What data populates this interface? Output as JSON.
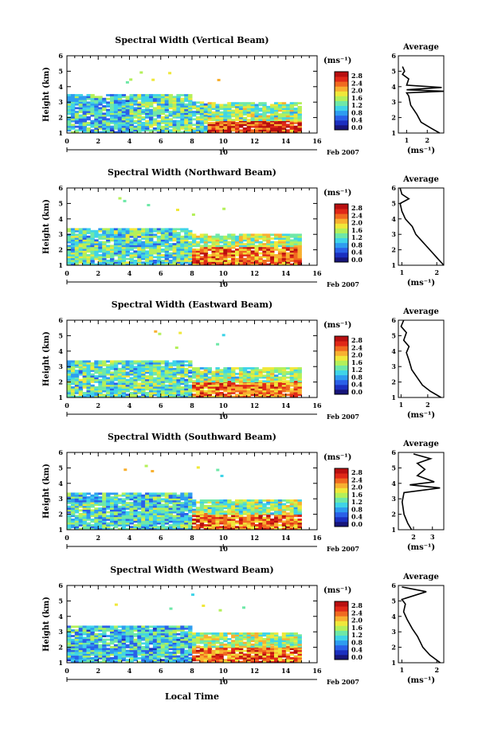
{
  "figure": {
    "x_ticks": [
      "0",
      "2",
      "4",
      "6",
      "8",
      "10",
      "12",
      "14",
      "16"
    ],
    "height_ticks": [
      "1",
      "2",
      "3",
      "4",
      "5",
      "6"
    ],
    "date_day": "10",
    "date_label": "Feb 2007",
    "xlabel": "Local Time",
    "unit_label": "(ms⁻¹)",
    "average_title": "Average"
  },
  "panels": [
    {
      "title": "Spectral Width (Vertical Beam)",
      "ylabel": "Height (km)"
    },
    {
      "title": "Spectral Width (Northward Beam)",
      "ylabel": "Height (km)"
    },
    {
      "title": "Spectral Width (Eastward Beam)",
      "ylabel": "Height (km)"
    },
    {
      "title": "Spectral Width (Southward Beam)",
      "ylabel": "Height (km)"
    },
    {
      "title": "Spectral Width (Westward Beam)",
      "ylabel": "Height (km)"
    }
  ],
  "colorbar": {
    "labels": [
      "2.8",
      "2.4",
      "2.0",
      "1.6",
      "1.2",
      "0.8",
      "0.4",
      "0.0"
    ],
    "colors": [
      "#17157a",
      "#1b2fc0",
      "#2a60e8",
      "#2e9cf0",
      "#3fd4e8",
      "#6ee8a8",
      "#b4f05a",
      "#f0e83a",
      "#f8b030",
      "#f06a20",
      "#e02818",
      "#b80f10"
    ]
  },
  "chart_data": [
    {
      "type": "heatmap",
      "title": "Spectral Width (Vertical Beam)",
      "xlabel": "Local Time",
      "ylabel": "Height (km)",
      "xlim": [
        0,
        16
      ],
      "ylim": [
        1,
        6
      ],
      "zlim": [
        0,
        2.8
      ],
      "z_unit": "ms⁻¹",
      "z_estimate": [
        {
          "x": [
            0,
            4
          ],
          "y": [
            1,
            3.5
          ],
          "z": 1.0
        },
        {
          "x": [
            4,
            9
          ],
          "y": [
            1,
            3.5
          ],
          "z": 1.2
        },
        {
          "x": [
            9,
            15
          ],
          "y": [
            1,
            1.8
          ],
          "z": 2.4
        },
        {
          "x": [
            9,
            15
          ],
          "y": [
            1.8,
            3
          ],
          "z": 1.4
        }
      ],
      "average_profile": {
        "xlabel": "(ms⁻¹)",
        "x_ticks": [
          "1",
          "2"
        ],
        "xlim": [
          0.6,
          2.8
        ],
        "points": [
          [
            2.6,
            1.0
          ],
          [
            2.2,
            1.3
          ],
          [
            1.7,
            1.7
          ],
          [
            1.5,
            2.2
          ],
          [
            1.2,
            2.8
          ],
          [
            1.1,
            3.4
          ],
          [
            1.0,
            3.6
          ],
          [
            2.8,
            3.7
          ],
          [
            1.0,
            3.8
          ],
          [
            2.7,
            3.95
          ],
          [
            1.0,
            4.1
          ],
          [
            1.1,
            4.5
          ],
          [
            0.8,
            4.8
          ],
          [
            0.9,
            5.0
          ],
          [
            0.8,
            5.3
          ]
        ]
      }
    },
    {
      "type": "heatmap",
      "title": "Spectral Width (Northward Beam)",
      "xlabel": "Local Time",
      "ylabel": "Height (km)",
      "xlim": [
        0,
        16
      ],
      "ylim": [
        1,
        6
      ],
      "zlim": [
        0,
        2.8
      ],
      "z_unit": "ms⁻¹",
      "z_estimate": [
        {
          "x": [
            0,
            8
          ],
          "y": [
            1,
            3.3
          ],
          "z": 1.2
        },
        {
          "x": [
            8,
            15
          ],
          "y": [
            1,
            2.2
          ],
          "z": 2.2
        },
        {
          "x": [
            8,
            15
          ],
          "y": [
            2.2,
            3
          ],
          "z": 1.5
        }
      ],
      "average_profile": {
        "xlabel": "(ms⁻¹)",
        "x_ticks": [
          "1",
          "2"
        ],
        "xlim": [
          0.9,
          2.2
        ],
        "points": [
          [
            2.2,
            1.0
          ],
          [
            2.0,
            1.5
          ],
          [
            1.8,
            2.0
          ],
          [
            1.6,
            2.5
          ],
          [
            1.4,
            3.0
          ],
          [
            1.3,
            3.5
          ],
          [
            1.1,
            4.0
          ],
          [
            1.0,
            4.5
          ],
          [
            0.95,
            5.0
          ],
          [
            1.2,
            5.3
          ],
          [
            1.0,
            5.6
          ],
          [
            0.95,
            6.0
          ]
        ]
      }
    },
    {
      "type": "heatmap",
      "title": "Spectral Width (Eastward Beam)",
      "xlabel": "Local Time",
      "ylabel": "Height (km)",
      "xlim": [
        0,
        16
      ],
      "ylim": [
        1,
        6
      ],
      "zlim": [
        0,
        2.8
      ],
      "z_unit": "ms⁻¹",
      "z_estimate": [
        {
          "x": [
            0,
            8
          ],
          "y": [
            1,
            3.3
          ],
          "z": 1.2
        },
        {
          "x": [
            8,
            15
          ],
          "y": [
            1,
            2.0
          ],
          "z": 2.2
        },
        {
          "x": [
            8,
            15
          ],
          "y": [
            2.0,
            3
          ],
          "z": 1.4
        }
      ],
      "average_profile": {
        "xlabel": "(ms⁻¹)",
        "x_ticks": [
          "1",
          "2"
        ],
        "xlim": [
          0.9,
          2.6
        ],
        "points": [
          [
            2.5,
            1.0
          ],
          [
            2.1,
            1.4
          ],
          [
            1.8,
            1.8
          ],
          [
            1.6,
            2.3
          ],
          [
            1.4,
            2.8
          ],
          [
            1.3,
            3.4
          ],
          [
            1.2,
            3.9
          ],
          [
            1.3,
            4.3
          ],
          [
            1.1,
            4.7
          ],
          [
            1.2,
            5.2
          ],
          [
            1.0,
            5.6
          ],
          [
            1.1,
            6.0
          ]
        ]
      }
    },
    {
      "type": "heatmap",
      "title": "Spectral Width (Southward Beam)",
      "xlabel": "Local Time",
      "ylabel": "Height (km)",
      "xlim": [
        0,
        16
      ],
      "ylim": [
        1,
        6
      ],
      "zlim": [
        0,
        2.8
      ],
      "z_unit": "ms⁻¹",
      "z_estimate": [
        {
          "x": [
            0,
            8
          ],
          "y": [
            1,
            3.4
          ],
          "z": 1.1
        },
        {
          "x": [
            8,
            15
          ],
          "y": [
            1,
            2.0
          ],
          "z": 2.2
        },
        {
          "x": [
            8,
            15
          ],
          "y": [
            2.0,
            3
          ],
          "z": 1.4
        }
      ],
      "average_profile": {
        "xlabel": "(ms⁻¹)",
        "x_ticks": [
          "2",
          "3"
        ],
        "xlim": [
          1.2,
          3.6
        ],
        "points": [
          [
            1.9,
            1.0
          ],
          [
            1.7,
            1.4
          ],
          [
            1.5,
            2.0
          ],
          [
            1.4,
            2.8
          ],
          [
            1.5,
            3.4
          ],
          [
            3.4,
            3.7
          ],
          [
            1.8,
            3.9
          ],
          [
            3.1,
            4.1
          ],
          [
            2.2,
            4.5
          ],
          [
            2.6,
            4.9
          ],
          [
            2.2,
            5.3
          ],
          [
            2.9,
            5.6
          ],
          [
            2.0,
            5.9
          ]
        ]
      }
    },
    {
      "type": "heatmap",
      "title": "Spectral Width (Westward Beam)",
      "xlabel": "Local Time",
      "ylabel": "Height (km)",
      "xlim": [
        0,
        16
      ],
      "ylim": [
        1,
        6
      ],
      "zlim": [
        0,
        2.8
      ],
      "z_unit": "ms⁻¹",
      "z_estimate": [
        {
          "x": [
            0,
            8
          ],
          "y": [
            1,
            3.4
          ],
          "z": 1.0
        },
        {
          "x": [
            8,
            15
          ],
          "y": [
            1,
            2.0
          ],
          "z": 2.2
        },
        {
          "x": [
            8,
            15
          ],
          "y": [
            2.0,
            3
          ],
          "z": 1.5
        }
      ],
      "average_profile": {
        "xlabel": "(ms⁻¹)",
        "x_ticks": [
          "1",
          "2"
        ],
        "xlim": [
          0.9,
          2.2
        ],
        "points": [
          [
            2.1,
            1.0
          ],
          [
            1.8,
            1.5
          ],
          [
            1.6,
            2.0
          ],
          [
            1.45,
            2.7
          ],
          [
            1.3,
            3.2
          ],
          [
            1.15,
            3.8
          ],
          [
            1.05,
            4.3
          ],
          [
            1.1,
            4.8
          ],
          [
            1.0,
            5.1
          ],
          [
            1.7,
            5.6
          ],
          [
            1.0,
            5.9
          ]
        ]
      }
    }
  ]
}
